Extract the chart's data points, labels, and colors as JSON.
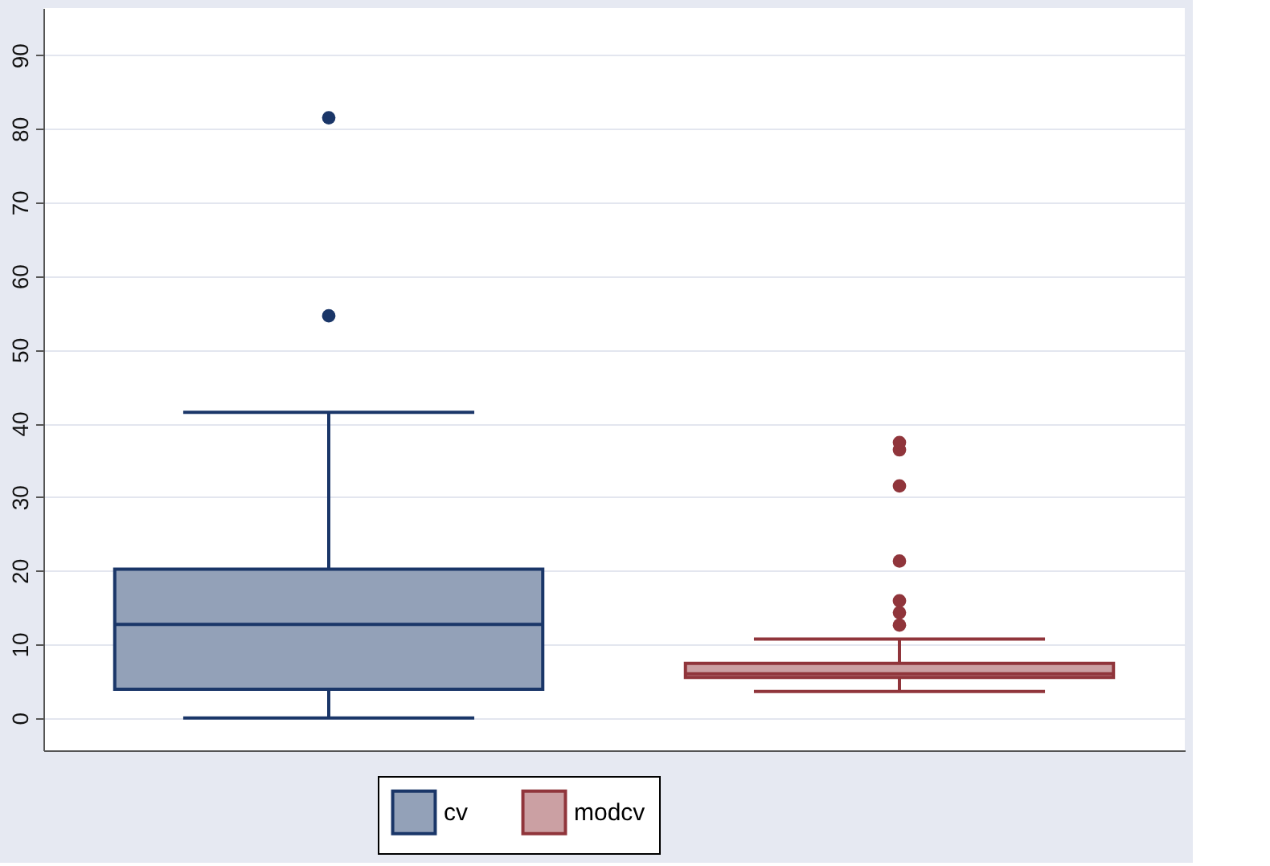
{
  "chart_data": {
    "type": "box",
    "categories": [
      null
    ],
    "series": [
      {
        "name": "cv",
        "color": "#1a3668",
        "boxes": [
          {
            "low": 0,
            "q1": 3.9,
            "median": 12.7,
            "q3": 20.2,
            "high": 41.5,
            "outliers": [
              54.6,
              81.5
            ]
          }
        ]
      },
      {
        "name": "modcv",
        "color": "#90353b",
        "boxes": [
          {
            "low": 3.6,
            "q1": 5.5,
            "median": 6.0,
            "q3": 7.4,
            "high": 10.7,
            "outliers": [
              12.6,
              14.3,
              15.9,
              21.3,
              31.5,
              36.4,
              37.4
            ]
          }
        ]
      }
    ],
    "ylim": [
      -4.4,
      96.4
    ],
    "yticks": [
      0,
      10,
      20,
      30,
      40,
      50,
      60,
      70,
      80,
      90
    ],
    "grid": "y",
    "legend": "bottom"
  }
}
